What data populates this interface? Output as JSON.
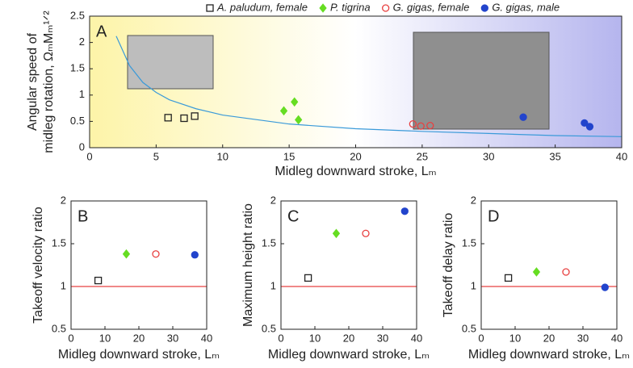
{
  "chart_data": [
    {
      "type": "scatter",
      "label": "A",
      "xlabel": "Midleg downward stroke, Lₘ",
      "ylabel": [
        "Angular speed of",
        "midleg rotation, ΩₘMₘ¹ᐟ²"
      ],
      "xlim": [
        0,
        40
      ],
      "xticks": [
        0,
        5,
        10,
        15,
        20,
        25,
        30,
        35,
        40
      ],
      "ylim": [
        0,
        2.5
      ],
      "yticks": [
        0,
        0.5,
        1,
        1.5,
        2,
        2.5
      ],
      "background": [
        "#fdf4a8",
        "#ffffff",
        "#b5b5ee"
      ],
      "series": [
        {
          "name": "A. paludum, female",
          "color": "#222222",
          "marker": "square",
          "filled": false,
          "x": [
            5.9,
            7.1,
            7.9
          ],
          "values": [
            0.57,
            0.56,
            0.6
          ]
        },
        {
          "name": "P. tigrina",
          "color": "#66dd22",
          "marker": "diamond",
          "filled": true,
          "x": [
            14.6,
            15.4,
            15.7
          ],
          "values": [
            0.7,
            0.87,
            0.53
          ]
        },
        {
          "name": "G. gigas, female",
          "color": "#e84040",
          "marker": "circle",
          "filled": false,
          "x": [
            24.3,
            24.9,
            25.6
          ],
          "values": [
            0.45,
            0.41,
            0.42
          ]
        },
        {
          "name": "G. gigas, male",
          "color": "#2244cc",
          "marker": "circle",
          "filled": true,
          "x": [
            32.6,
            37.2,
            37.6
          ],
          "values": [
            0.58,
            0.47,
            0.4
          ]
        },
        {
          "color": "#3a9ad9",
          "marker": "line",
          "x": [
            2,
            3,
            4,
            5,
            6,
            8,
            10,
            15,
            20,
            25,
            30,
            35,
            40
          ],
          "values": [
            2.12,
            1.56,
            1.24,
            1.05,
            0.91,
            0.74,
            0.62,
            0.45,
            0.36,
            0.31,
            0.27,
            0.23,
            0.21
          ]
        }
      ]
    },
    {
      "type": "scatter",
      "label": "B",
      "xlabel": "Midleg downward stroke, Lₘ",
      "ylabel": [
        "Takeoff velocity ratio"
      ],
      "xlim": [
        0,
        40
      ],
      "xticks": [
        0,
        10,
        20,
        30,
        40
      ],
      "ylim": [
        0.5,
        2
      ],
      "yticks": [
        0.5,
        1,
        1.5,
        2
      ],
      "hline": {
        "value": 1,
        "color": "#e84040"
      },
      "series": [
        {
          "color": "#222222",
          "marker": "square",
          "filled": false,
          "x": [
            8
          ],
          "values": [
            1.07
          ]
        },
        {
          "color": "#66dd22",
          "marker": "diamond",
          "filled": true,
          "x": [
            16.3
          ],
          "values": [
            1.38
          ]
        },
        {
          "color": "#e84040",
          "marker": "circle",
          "filled": false,
          "x": [
            25
          ],
          "values": [
            1.38
          ]
        },
        {
          "color": "#2244cc",
          "marker": "circle",
          "filled": true,
          "x": [
            36.5
          ],
          "values": [
            1.37
          ]
        }
      ]
    },
    {
      "type": "scatter",
      "label": "C",
      "xlabel": "Midleg downward stroke, Lₘ",
      "ylabel": [
        "Maximum height ratio"
      ],
      "xlim": [
        0,
        40
      ],
      "xticks": [
        0,
        10,
        20,
        30,
        40
      ],
      "ylim": [
        0.5,
        2
      ],
      "yticks": [
        0.5,
        1,
        1.5,
        2
      ],
      "hline": {
        "value": 1,
        "color": "#e84040"
      },
      "series": [
        {
          "color": "#222222",
          "marker": "square",
          "filled": false,
          "x": [
            8
          ],
          "values": [
            1.1
          ]
        },
        {
          "color": "#66dd22",
          "marker": "diamond",
          "filled": true,
          "x": [
            16.3
          ],
          "values": [
            1.62
          ]
        },
        {
          "color": "#e84040",
          "marker": "circle",
          "filled": false,
          "x": [
            25
          ],
          "values": [
            1.62
          ]
        },
        {
          "color": "#2244cc",
          "marker": "circle",
          "filled": true,
          "x": [
            36.5
          ],
          "values": [
            1.88
          ]
        }
      ]
    },
    {
      "type": "scatter",
      "label": "D",
      "xlabel": "Midleg downward stroke, Lₘ",
      "ylabel": [
        "Takeoff delay ratio"
      ],
      "xlim": [
        0,
        40
      ],
      "xticks": [
        0,
        10,
        20,
        30,
        40
      ],
      "ylim": [
        0.5,
        2
      ],
      "yticks": [
        0.5,
        1,
        1.5,
        2
      ],
      "hline": {
        "value": 1,
        "color": "#e84040"
      },
      "series": [
        {
          "color": "#222222",
          "marker": "square",
          "filled": false,
          "x": [
            8
          ],
          "values": [
            1.1
          ]
        },
        {
          "color": "#66dd22",
          "marker": "diamond",
          "filled": true,
          "x": [
            16.3
          ],
          "values": [
            1.17
          ]
        },
        {
          "color": "#e84040",
          "marker": "circle",
          "filled": false,
          "x": [
            25
          ],
          "values": [
            1.17
          ]
        },
        {
          "color": "#2244cc",
          "marker": "circle",
          "filled": true,
          "x": [
            36.5
          ],
          "values": [
            0.99
          ]
        }
      ]
    }
  ]
}
